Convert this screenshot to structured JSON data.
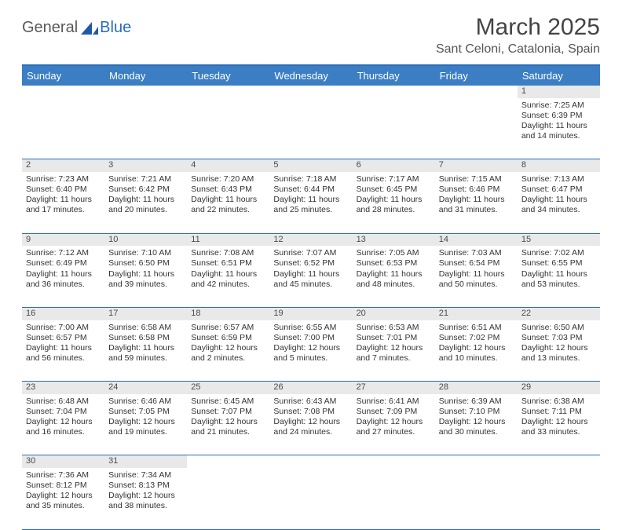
{
  "brand": {
    "part1": "General",
    "part2": "Blue"
  },
  "title": "March 2025",
  "location": "Sant Celoni, Catalonia, Spain",
  "colors": {
    "header_bg": "#3b7ec4",
    "header_border": "#2a6db8",
    "daynum_bg": "#e9e9e9",
    "text": "#333333",
    "brand_gray": "#5a5a5a",
    "brand_blue": "#2a6db8"
  },
  "weekdays": [
    "Sunday",
    "Monday",
    "Tuesday",
    "Wednesday",
    "Thursday",
    "Friday",
    "Saturday"
  ],
  "weeks": [
    [
      null,
      null,
      null,
      null,
      null,
      null,
      {
        "n": "1",
        "sr": "7:25 AM",
        "ss": "6:39 PM",
        "dl1": "11 hours",
        "dl2": "and 14 minutes."
      }
    ],
    [
      {
        "n": "2",
        "sr": "7:23 AM",
        "ss": "6:40 PM",
        "dl1": "11 hours",
        "dl2": "and 17 minutes."
      },
      {
        "n": "3",
        "sr": "7:21 AM",
        "ss": "6:42 PM",
        "dl1": "11 hours",
        "dl2": "and 20 minutes."
      },
      {
        "n": "4",
        "sr": "7:20 AM",
        "ss": "6:43 PM",
        "dl1": "11 hours",
        "dl2": "and 22 minutes."
      },
      {
        "n": "5",
        "sr": "7:18 AM",
        "ss": "6:44 PM",
        "dl1": "11 hours",
        "dl2": "and 25 minutes."
      },
      {
        "n": "6",
        "sr": "7:17 AM",
        "ss": "6:45 PM",
        "dl1": "11 hours",
        "dl2": "and 28 minutes."
      },
      {
        "n": "7",
        "sr": "7:15 AM",
        "ss": "6:46 PM",
        "dl1": "11 hours",
        "dl2": "and 31 minutes."
      },
      {
        "n": "8",
        "sr": "7:13 AM",
        "ss": "6:47 PM",
        "dl1": "11 hours",
        "dl2": "and 34 minutes."
      }
    ],
    [
      {
        "n": "9",
        "sr": "7:12 AM",
        "ss": "6:49 PM",
        "dl1": "11 hours",
        "dl2": "and 36 minutes."
      },
      {
        "n": "10",
        "sr": "7:10 AM",
        "ss": "6:50 PM",
        "dl1": "11 hours",
        "dl2": "and 39 minutes."
      },
      {
        "n": "11",
        "sr": "7:08 AM",
        "ss": "6:51 PM",
        "dl1": "11 hours",
        "dl2": "and 42 minutes."
      },
      {
        "n": "12",
        "sr": "7:07 AM",
        "ss": "6:52 PM",
        "dl1": "11 hours",
        "dl2": "and 45 minutes."
      },
      {
        "n": "13",
        "sr": "7:05 AM",
        "ss": "6:53 PM",
        "dl1": "11 hours",
        "dl2": "and 48 minutes."
      },
      {
        "n": "14",
        "sr": "7:03 AM",
        "ss": "6:54 PM",
        "dl1": "11 hours",
        "dl2": "and 50 minutes."
      },
      {
        "n": "15",
        "sr": "7:02 AM",
        "ss": "6:55 PM",
        "dl1": "11 hours",
        "dl2": "and 53 minutes."
      }
    ],
    [
      {
        "n": "16",
        "sr": "7:00 AM",
        "ss": "6:57 PM",
        "dl1": "11 hours",
        "dl2": "and 56 minutes."
      },
      {
        "n": "17",
        "sr": "6:58 AM",
        "ss": "6:58 PM",
        "dl1": "11 hours",
        "dl2": "and 59 minutes."
      },
      {
        "n": "18",
        "sr": "6:57 AM",
        "ss": "6:59 PM",
        "dl1": "12 hours",
        "dl2": "and 2 minutes."
      },
      {
        "n": "19",
        "sr": "6:55 AM",
        "ss": "7:00 PM",
        "dl1": "12 hours",
        "dl2": "and 5 minutes."
      },
      {
        "n": "20",
        "sr": "6:53 AM",
        "ss": "7:01 PM",
        "dl1": "12 hours",
        "dl2": "and 7 minutes."
      },
      {
        "n": "21",
        "sr": "6:51 AM",
        "ss": "7:02 PM",
        "dl1": "12 hours",
        "dl2": "and 10 minutes."
      },
      {
        "n": "22",
        "sr": "6:50 AM",
        "ss": "7:03 PM",
        "dl1": "12 hours",
        "dl2": "and 13 minutes."
      }
    ],
    [
      {
        "n": "23",
        "sr": "6:48 AM",
        "ss": "7:04 PM",
        "dl1": "12 hours",
        "dl2": "and 16 minutes."
      },
      {
        "n": "24",
        "sr": "6:46 AM",
        "ss": "7:05 PM",
        "dl1": "12 hours",
        "dl2": "and 19 minutes."
      },
      {
        "n": "25",
        "sr": "6:45 AM",
        "ss": "7:07 PM",
        "dl1": "12 hours",
        "dl2": "and 21 minutes."
      },
      {
        "n": "26",
        "sr": "6:43 AM",
        "ss": "7:08 PM",
        "dl1": "12 hours",
        "dl2": "and 24 minutes."
      },
      {
        "n": "27",
        "sr": "6:41 AM",
        "ss": "7:09 PM",
        "dl1": "12 hours",
        "dl2": "and 27 minutes."
      },
      {
        "n": "28",
        "sr": "6:39 AM",
        "ss": "7:10 PM",
        "dl1": "12 hours",
        "dl2": "and 30 minutes."
      },
      {
        "n": "29",
        "sr": "6:38 AM",
        "ss": "7:11 PM",
        "dl1": "12 hours",
        "dl2": "and 33 minutes."
      }
    ],
    [
      {
        "n": "30",
        "sr": "7:36 AM",
        "ss": "8:12 PM",
        "dl1": "12 hours",
        "dl2": "and 35 minutes."
      },
      {
        "n": "31",
        "sr": "7:34 AM",
        "ss": "8:13 PM",
        "dl1": "12 hours",
        "dl2": "and 38 minutes."
      },
      null,
      null,
      null,
      null,
      null
    ]
  ],
  "labels": {
    "sunrise": "Sunrise: ",
    "sunset": "Sunset: ",
    "daylight": "Daylight: "
  }
}
